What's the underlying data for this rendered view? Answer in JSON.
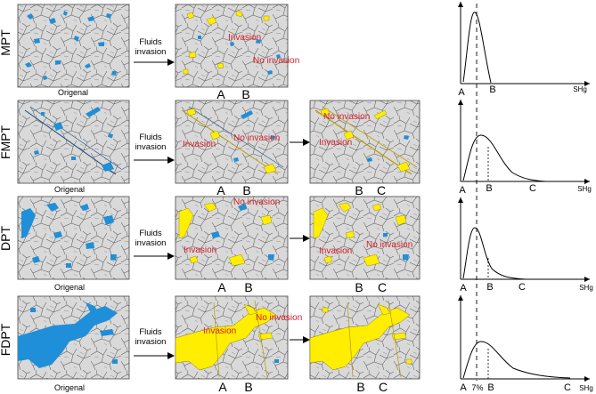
{
  "rows": [
    {
      "id": "mpt",
      "label": "MPT",
      "original_label": "Origenal",
      "arrow_label": [
        "Fluids",
        "invasion"
      ],
      "panel2": {
        "invasion": "Invasion",
        "no_invasion": "No invasion",
        "letters": [
          "A",
          "B"
        ]
      },
      "panel3": null,
      "curve_letters": [
        "A",
        "B"
      ],
      "axis_label": "SHg",
      "percent": ""
    },
    {
      "id": "fmpt",
      "label": "FMPT",
      "original_label": "Origenal",
      "arrow_label": [
        "Fluids",
        "invasion"
      ],
      "panel2": {
        "invasion": "Invasion",
        "no_invasion": "No invasion",
        "letters": [
          "A",
          "B"
        ]
      },
      "panel3": {
        "invasion": "Invasion",
        "no_invasion": "No invasion",
        "letters": [
          "B",
          "C"
        ]
      },
      "curve_letters": [
        "A",
        "B",
        "C"
      ],
      "axis_label": "SHg",
      "percent": ""
    },
    {
      "id": "dpt",
      "label": "DPT",
      "original_label": "Origenal",
      "arrow_label": [
        "Fluids",
        "invasion"
      ],
      "panel2": {
        "invasion": "Invasion",
        "no_invasion": "No invasion",
        "letters": [
          "A",
          "B"
        ]
      },
      "panel3": {
        "invasion": "Invasion",
        "no_invasion": "No invasion",
        "letters": [
          "B",
          "C"
        ]
      },
      "curve_letters": [
        "A",
        "B",
        "C"
      ],
      "axis_label": "SHg",
      "percent": ""
    },
    {
      "id": "fdpt",
      "label": "FDPT",
      "original_label": "Origenal",
      "arrow_label": [
        "Fluids",
        "invasion"
      ],
      "panel2": {
        "invasion": "Invasion",
        "no_invasion": "No invasion",
        "letters": [
          "A",
          "B"
        ]
      },
      "panel3": {
        "invasion": "",
        "no_invasion": "",
        "letters": [
          "B",
          "C"
        ]
      },
      "curve_letters": [
        "A",
        "B",
        "C"
      ],
      "axis_label": "SHg",
      "percent": "7%"
    }
  ],
  "colors": {
    "grain_fill": "#d9d9d9",
    "grain_line": "#555555",
    "pore_blue": "#1e8fd8",
    "invaded_yellow": "#ffee00",
    "label_red": "#d0202a"
  }
}
